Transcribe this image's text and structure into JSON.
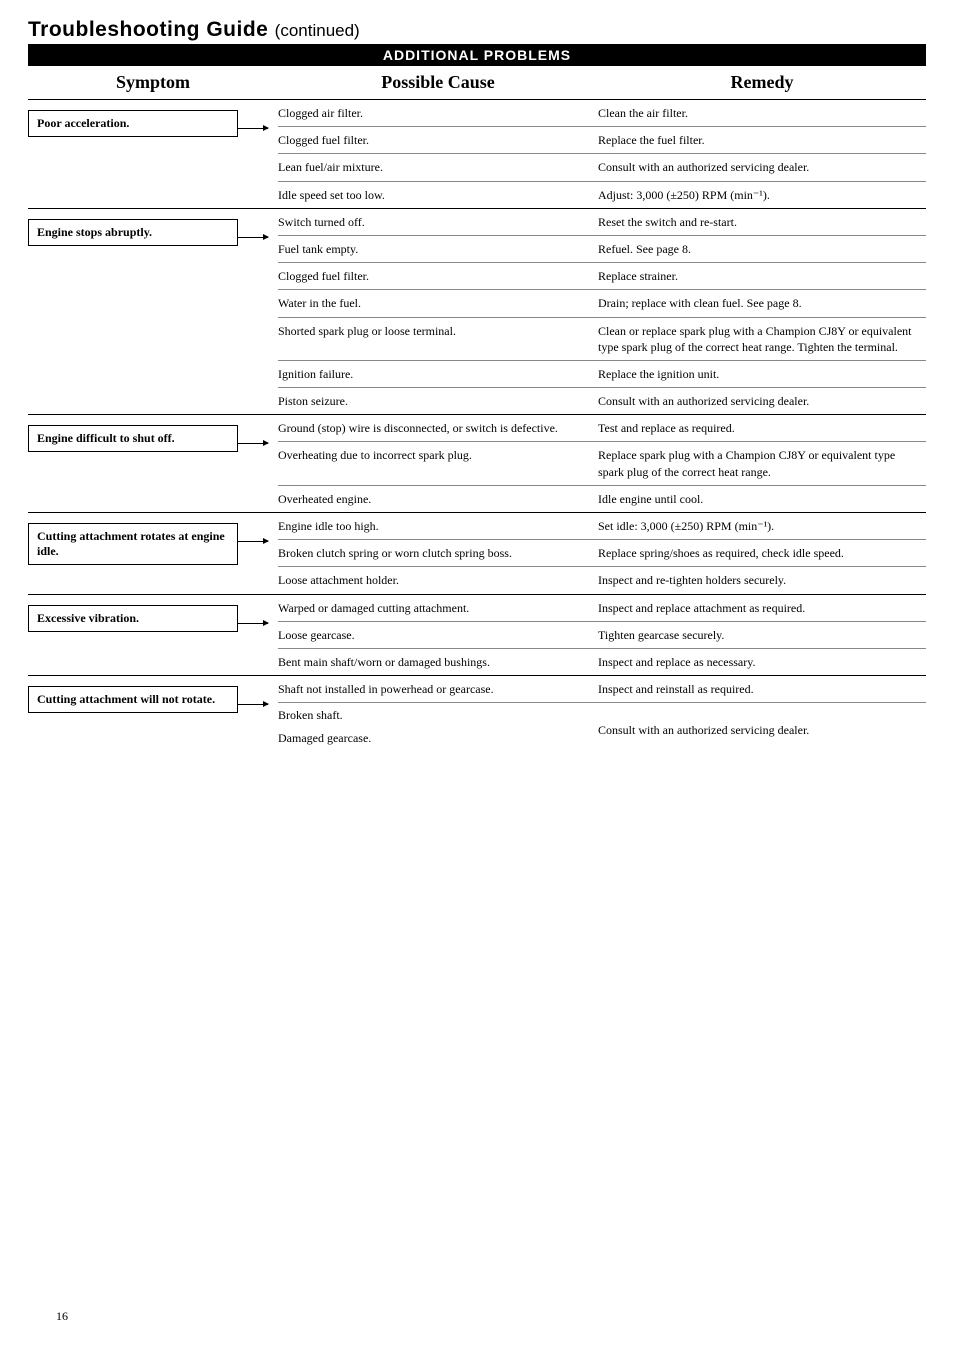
{
  "page": {
    "title_main": "Troubleshooting Guide",
    "title_cont": "(continued)",
    "banner": "ADDITIONAL PROBLEMS",
    "header_symptom": "Symptom",
    "header_cause": "Possible Cause",
    "header_remedy": "Remedy",
    "page_number": "16"
  },
  "style": {
    "bg": "#ffffff",
    "text": "#000000",
    "rule": "#000000",
    "subrule": "#888888",
    "banner_bg": "#000000",
    "banner_fg": "#ffffff",
    "title_fontsize": 21,
    "header_fontsize": 18,
    "body_fontsize": 12
  },
  "blocks": [
    {
      "symptom": "Poor acceleration.",
      "rows": [
        {
          "cause": "Clogged air filter.",
          "remedy": "Clean the air filter."
        },
        {
          "cause": "Clogged fuel filter.",
          "remedy": "Replace the fuel filter."
        },
        {
          "cause": "Lean fuel/air mixture.",
          "remedy": "Consult with an authorized servicing dealer."
        },
        {
          "cause": "Idle speed set too low.",
          "remedy": "Adjust: 3,000 (±250) RPM (min⁻¹)."
        }
      ]
    },
    {
      "symptom": "Engine stops abruptly.",
      "rows": [
        {
          "cause": "Switch turned off.",
          "remedy": "Reset the switch and re-start."
        },
        {
          "cause": "Fuel tank empty.",
          "remedy": "Refuel. See page 8."
        },
        {
          "cause": "Clogged fuel filter.",
          "remedy": "Replace strainer."
        },
        {
          "cause": "Water in the fuel.",
          "remedy": "Drain; replace with clean fuel. See page 8."
        },
        {
          "cause": "Shorted spark plug or loose terminal.",
          "remedy": "Clean or replace spark plug with a Champion CJ8Y or equivalent type spark plug of the correct heat range. Tighten the terminal."
        },
        {
          "cause": "Ignition failure.",
          "remedy": "Replace the ignition unit."
        },
        {
          "cause": "Piston seizure.",
          "remedy": "Consult with an authorized servicing dealer."
        }
      ]
    },
    {
      "symptom": "Engine difficult to shut off.",
      "rows": [
        {
          "cause": "Ground (stop) wire is disconnected, or switch is defective.",
          "remedy": "Test and replace as required."
        },
        {
          "cause": "Overheating due to incorrect spark plug.",
          "remedy": "Replace spark plug with a Champion CJ8Y or equivalent type spark plug of the correct heat range."
        },
        {
          "cause": "Overheated engine.",
          "remedy": "Idle engine until cool."
        }
      ]
    },
    {
      "symptom": "Cutting attachment rotates at engine idle.",
      "rows": [
        {
          "cause": "Engine idle too high.",
          "remedy": "Set idle: 3,000 (±250) RPM (min⁻¹)."
        },
        {
          "cause": "Broken clutch spring or worn clutch spring boss.",
          "remedy": "Replace spring/shoes as required, check idle speed."
        },
        {
          "cause": "Loose attachment holder.",
          "remedy": "Inspect and re-tighten holders securely."
        }
      ]
    },
    {
      "symptom": "Excessive vibration.",
      "rows": [
        {
          "cause": "Warped or damaged cutting attachment.",
          "remedy": "Inspect and replace attachment as required."
        },
        {
          "cause": "Loose gearcase.",
          "remedy": "Tighten gearcase securely."
        },
        {
          "cause": "Bent main shaft/worn or damaged bushings.",
          "remedy": "Inspect and replace as necessary."
        }
      ]
    },
    {
      "symptom": "Cutting attachment will not rotate.",
      "rows": [
        {
          "cause": "Shaft not installed in powerhead or gearcase.",
          "remedy": "Inspect and reinstall as required."
        }
      ],
      "merged_causes": [
        "Broken shaft.",
        "Damaged gearcase."
      ],
      "merged_remedy": "Consult with an authorized servicing dealer."
    }
  ]
}
